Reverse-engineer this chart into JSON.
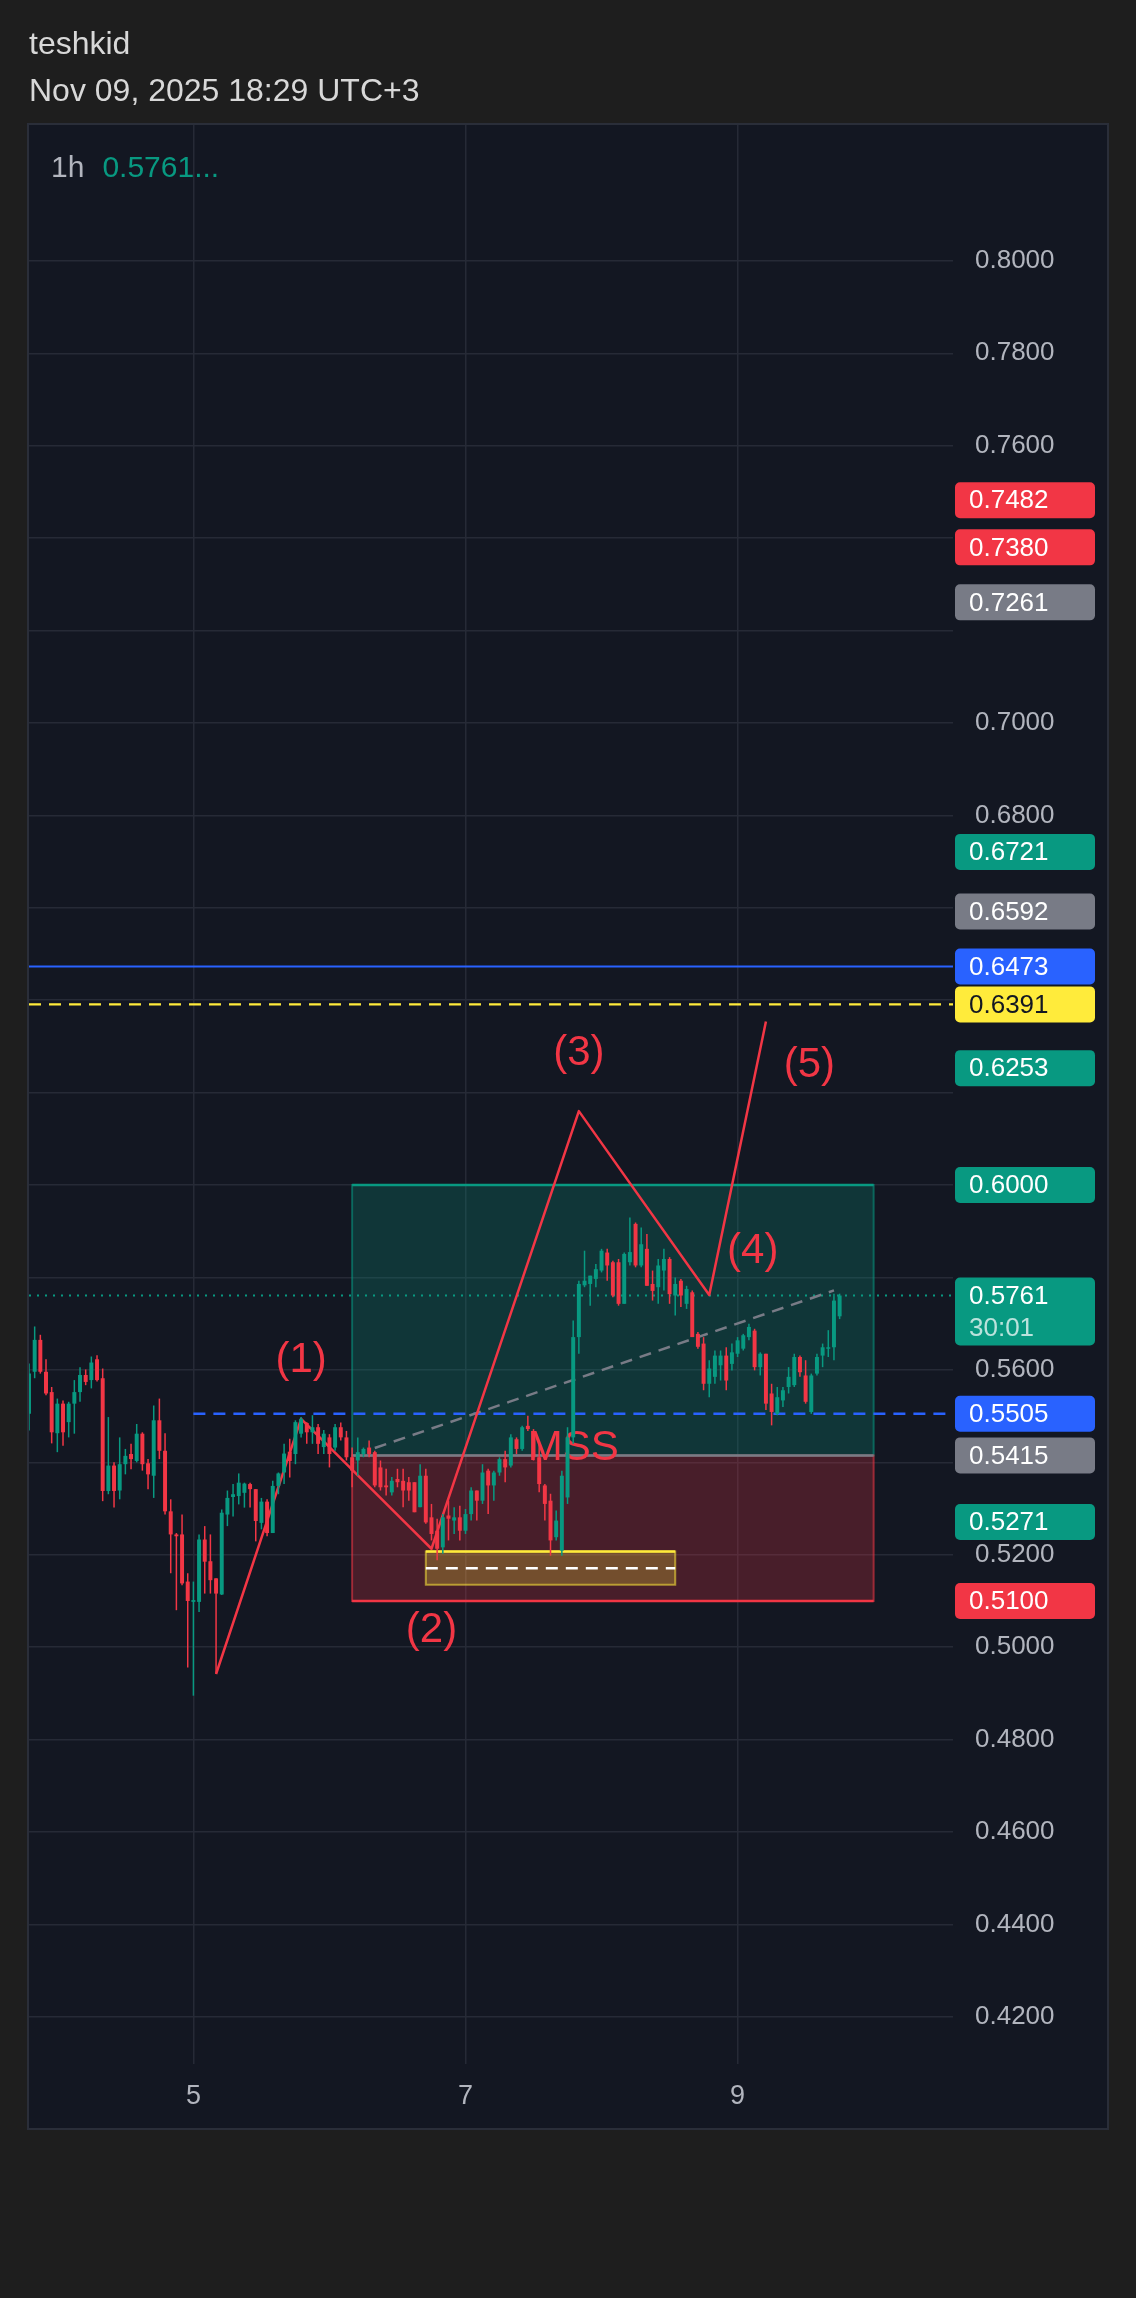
{
  "chart_data": {
    "type": "candlestick",
    "title": "1h",
    "subtitle": "0.5761...",
    "annotations": [
      "teshkid",
      "Nov 09, 2025 18:29 UTC+3",
      {
        "text": "(1)",
        "x": "2025-11-05T19:00",
        "y": 0.5494
      },
      {
        "text": "(2)",
        "x": "2025-11-06T18:00",
        "y": 0.5213
      },
      {
        "text": "(3)",
        "x": "2025-11-07T20:00",
        "y": 0.616
      },
      {
        "text": "(4)",
        "x": "2025-11-08T19:00",
        "y": 0.5762
      },
      {
        "text": "(5)",
        "x": "2025-11-09T05:00",
        "y": 0.6354
      },
      {
        "text": "MSS",
        "x": "2025-11-07T19:00",
        "y": 0.543
      }
    ],
    "x": [
      "2025-11-03T19:00",
      "2025-11-03T20:00",
      "2025-11-03T21:00",
      "2025-11-03T22:00",
      "2025-11-03T23:00",
      "2025-11-04T00:00",
      "2025-11-04T01:00",
      "2025-11-04T02:00",
      "2025-11-04T03:00",
      "2025-11-04T04:00",
      "2025-11-04T05:00",
      "2025-11-04T06:00",
      "2025-11-04T07:00",
      "2025-11-04T08:00",
      "2025-11-04T09:00",
      "2025-11-04T10:00",
      "2025-11-04T11:00",
      "2025-11-04T12:00",
      "2025-11-04T13:00",
      "2025-11-04T14:00",
      "2025-11-04T15:00",
      "2025-11-04T16:00",
      "2025-11-04T17:00",
      "2025-11-04T18:00",
      "2025-11-04T19:00",
      "2025-11-04T20:00",
      "2025-11-04T21:00",
      "2025-11-04T22:00",
      "2025-11-04T23:00",
      "2025-11-05T00:00",
      "2025-11-05T01:00",
      "2025-11-05T02:00",
      "2025-11-05T03:00",
      "2025-11-05T04:00",
      "2025-11-05T05:00",
      "2025-11-05T06:00",
      "2025-11-05T07:00",
      "2025-11-05T08:00",
      "2025-11-05T09:00",
      "2025-11-05T10:00",
      "2025-11-05T11:00",
      "2025-11-05T12:00",
      "2025-11-05T13:00",
      "2025-11-05T14:00",
      "2025-11-05T15:00",
      "2025-11-05T16:00",
      "2025-11-05T17:00",
      "2025-11-05T18:00",
      "2025-11-05T19:00",
      "2025-11-05T20:00",
      "2025-11-05T21:00",
      "2025-11-05T22:00",
      "2025-11-05T23:00",
      "2025-11-06T00:00",
      "2025-11-06T01:00",
      "2025-11-06T02:00",
      "2025-11-06T03:00",
      "2025-11-06T04:00",
      "2025-11-06T05:00",
      "2025-11-06T06:00",
      "2025-11-06T07:00",
      "2025-11-06T08:00",
      "2025-11-06T09:00",
      "2025-11-06T10:00",
      "2025-11-06T11:00",
      "2025-11-06T12:00",
      "2025-11-06T13:00",
      "2025-11-06T14:00",
      "2025-11-06T15:00",
      "2025-11-06T16:00",
      "2025-11-06T17:00",
      "2025-11-06T18:00",
      "2025-11-06T19:00",
      "2025-11-06T20:00",
      "2025-11-06T21:00",
      "2025-11-06T22:00",
      "2025-11-06T23:00",
      "2025-11-07T00:00",
      "2025-11-07T01:00",
      "2025-11-07T02:00",
      "2025-11-07T03:00",
      "2025-11-07T04:00",
      "2025-11-07T05:00",
      "2025-11-07T06:00",
      "2025-11-07T07:00",
      "2025-11-07T08:00",
      "2025-11-07T09:00",
      "2025-11-07T10:00",
      "2025-11-07T11:00",
      "2025-11-07T12:00",
      "2025-11-07T13:00",
      "2025-11-07T14:00",
      "2025-11-07T15:00",
      "2025-11-07T16:00",
      "2025-11-07T17:00",
      "2025-11-07T18:00",
      "2025-11-07T19:00",
      "2025-11-07T20:00",
      "2025-11-07T21:00",
      "2025-11-07T22:00",
      "2025-11-07T23:00",
      "2025-11-08T00:00",
      "2025-11-08T01:00",
      "2025-11-08T02:00",
      "2025-11-08T03:00",
      "2025-11-08T04:00",
      "2025-11-08T05:00",
      "2025-11-08T06:00",
      "2025-11-08T07:00",
      "2025-11-08T08:00",
      "2025-11-08T09:00",
      "2025-11-08T10:00",
      "2025-11-08T11:00",
      "2025-11-08T12:00",
      "2025-11-08T13:00",
      "2025-11-08T14:00",
      "2025-11-08T15:00",
      "2025-11-08T16:00",
      "2025-11-08T17:00",
      "2025-11-08T18:00",
      "2025-11-08T19:00",
      "2025-11-08T20:00",
      "2025-11-08T21:00",
      "2025-11-08T22:00",
      "2025-11-08T23:00",
      "2025-11-09T00:00",
      "2025-11-09T01:00",
      "2025-11-09T02:00",
      "2025-11-09T03:00",
      "2025-11-09T04:00",
      "2025-11-09T05:00",
      "2025-11-09T06:00",
      "2025-11-09T07:00",
      "2025-11-09T08:00",
      "2025-11-09T09:00",
      "2025-11-09T10:00",
      "2025-11-09T11:00",
      "2025-11-09T12:00",
      "2025-11-09T13:00",
      "2025-11-09T14:00",
      "2025-11-09T15:00",
      "2025-11-09T16:00",
      "2025-11-09T17:00",
      "2025-11-09T18:00"
    ],
    "ohlc": [
      [
        0.5505,
        0.5614,
        0.5469,
        0.5592
      ],
      [
        0.5596,
        0.5694,
        0.5582,
        0.5665
      ],
      [
        0.5665,
        0.5676,
        0.5592,
        0.5596
      ],
      [
        0.5596,
        0.5623,
        0.5545,
        0.5549
      ],
      [
        0.5552,
        0.5563,
        0.5441,
        0.5465
      ],
      [
        0.5463,
        0.5538,
        0.5422,
        0.5527
      ],
      [
        0.5527,
        0.5534,
        0.5436,
        0.5465
      ],
      [
        0.5487,
        0.5531,
        0.5454,
        0.5527
      ],
      [
        0.5527,
        0.5578,
        0.5462,
        0.5552
      ],
      [
        0.5552,
        0.5606,
        0.5531,
        0.5589
      ],
      [
        0.5589,
        0.5601,
        0.5567,
        0.5574
      ],
      [
        0.5578,
        0.5629,
        0.556,
        0.5616
      ],
      [
        0.5623,
        0.5632,
        0.5575,
        0.5578
      ],
      [
        0.5582,
        0.5603,
        0.5316,
        0.5338
      ],
      [
        0.5338,
        0.5498,
        0.5331,
        0.5393
      ],
      [
        0.5393,
        0.54,
        0.5302,
        0.5338
      ],
      [
        0.5339,
        0.5454,
        0.532,
        0.5396
      ],
      [
        0.5396,
        0.5429,
        0.5374,
        0.5414
      ],
      [
        0.5418,
        0.544,
        0.5385,
        0.5407
      ],
      [
        0.5403,
        0.5483,
        0.54,
        0.5462
      ],
      [
        0.5462,
        0.5465,
        0.5382,
        0.5396
      ],
      [
        0.5398,
        0.5407,
        0.5342,
        0.5374
      ],
      [
        0.5371,
        0.5523,
        0.5323,
        0.5491
      ],
      [
        0.5491,
        0.5538,
        0.5407,
        0.5425
      ],
      [
        0.5425,
        0.5463,
        0.5287,
        0.5294
      ],
      [
        0.5294,
        0.532,
        0.516,
        0.5244
      ],
      [
        0.5244,
        0.5247,
        0.508,
        0.524
      ],
      [
        0.5244,
        0.5287,
        0.5134,
        0.5138
      ],
      [
        0.5142,
        0.516,
        0.4956,
        0.51
      ],
      [
        0.5098,
        0.5142,
        0.4895,
        0.5102
      ],
      [
        0.5098,
        0.5244,
        0.5076,
        0.5233
      ],
      [
        0.5233,
        0.5262,
        0.5116,
        0.5185
      ],
      [
        0.5186,
        0.5244,
        0.5116,
        0.5145
      ],
      [
        0.5149,
        0.5149,
        0.4942,
        0.5116
      ],
      [
        0.5114,
        0.5298,
        0.5113,
        0.5291
      ],
      [
        0.5287,
        0.5339,
        0.5262,
        0.5323
      ],
      [
        0.5325,
        0.5353,
        0.5283,
        0.5331
      ],
      [
        0.5327,
        0.5376,
        0.5309,
        0.5356
      ],
      [
        0.5334,
        0.5356,
        0.5302,
        0.5354
      ],
      [
        0.5353,
        0.5356,
        0.5302,
        0.5342
      ],
      [
        0.5342,
        0.5342,
        0.5229,
        0.5273
      ],
      [
        0.5269,
        0.5323,
        0.5255,
        0.5315
      ],
      [
        0.5315,
        0.532,
        0.524,
        0.5247
      ],
      [
        0.5247,
        0.536,
        0.5247,
        0.5349
      ],
      [
        0.5349,
        0.5378,
        0.5331,
        0.5376
      ],
      [
        0.5378,
        0.544,
        0.5353,
        0.5419
      ],
      [
        0.5423,
        0.5451,
        0.5367,
        0.5403
      ],
      [
        0.5418,
        0.5491,
        0.5396,
        0.5487
      ],
      [
        0.5462,
        0.5498,
        0.5454,
        0.5494
      ],
      [
        0.5485,
        0.5487,
        0.544,
        0.5465
      ],
      [
        0.5465,
        0.5502,
        0.544,
        0.5476
      ],
      [
        0.5476,
        0.5483,
        0.5418,
        0.544
      ],
      [
        0.5433,
        0.547,
        0.5418,
        0.5462
      ],
      [
        0.5454,
        0.5461,
        0.5389,
        0.5418
      ],
      [
        0.5432,
        0.5483,
        0.5425,
        0.5476
      ],
      [
        0.5476,
        0.5486,
        0.5447,
        0.5454
      ],
      [
        0.5454,
        0.5468,
        0.5404,
        0.5411
      ],
      [
        0.5411,
        0.5432,
        0.5346,
        0.5382
      ],
      [
        0.5404,
        0.5454,
        0.5371,
        0.5422
      ],
      [
        0.5418,
        0.5432,
        0.5411,
        0.5429
      ],
      [
        0.5432,
        0.5447,
        0.5411,
        0.5418
      ],
      [
        0.5422,
        0.5425,
        0.5346,
        0.535
      ],
      [
        0.5389,
        0.5404,
        0.5339,
        0.5346
      ],
      [
        0.535,
        0.5386,
        0.5328,
        0.5346
      ],
      [
        0.5335,
        0.5368,
        0.5328,
        0.536
      ],
      [
        0.5364,
        0.5386,
        0.5346,
        0.5357
      ],
      [
        0.536,
        0.5386,
        0.5303,
        0.5339
      ],
      [
        0.5357,
        0.5368,
        0.5317,
        0.5339
      ],
      [
        0.5357,
        0.5357,
        0.5292,
        0.5292
      ],
      [
        0.5303,
        0.5396,
        0.5303,
        0.5371
      ],
      [
        0.5371,
        0.5386,
        0.5267,
        0.527
      ],
      [
        0.5281,
        0.531,
        0.5231,
        0.5245
      ],
      [
        0.5252,
        0.5278,
        0.5188,
        0.5213
      ],
      [
        0.5216,
        0.5288,
        0.5202,
        0.5281
      ],
      [
        0.5285,
        0.5317,
        0.5231,
        0.5278
      ],
      [
        0.5274,
        0.5303,
        0.5245,
        0.5281
      ],
      [
        0.5281,
        0.5306,
        0.5231,
        0.5252
      ],
      [
        0.5252,
        0.5299,
        0.5245,
        0.5288
      ],
      [
        0.5288,
        0.5346,
        0.5274,
        0.5339
      ],
      [
        0.5339,
        0.5339,
        0.5274,
        0.5317
      ],
      [
        0.5317,
        0.5396,
        0.531,
        0.5378
      ],
      [
        0.5382,
        0.5386,
        0.5288,
        0.535
      ],
      [
        0.535,
        0.5382,
        0.5317,
        0.5378
      ],
      [
        0.5378,
        0.5411,
        0.5371,
        0.5407
      ],
      [
        0.5407,
        0.5425,
        0.5357,
        0.5389
      ],
      [
        0.5393,
        0.5461,
        0.5389,
        0.5454
      ],
      [
        0.545,
        0.5454,
        0.5418,
        0.5429
      ],
      [
        0.5429,
        0.5479,
        0.5425,
        0.5476
      ],
      [
        0.5479,
        0.5501,
        0.5468,
        0.5472
      ],
      [
        0.5468,
        0.5472,
        0.5404,
        0.5411
      ],
      [
        0.5411,
        0.544,
        0.5335,
        0.5353
      ],
      [
        0.535,
        0.5353,
        0.5274,
        0.531
      ],
      [
        0.5317,
        0.5332,
        0.5198,
        0.5231
      ],
      [
        0.5238,
        0.5296,
        0.5231,
        0.5274
      ],
      [
        0.5209,
        0.5382,
        0.5198,
        0.5371
      ],
      [
        0.5324,
        0.5476,
        0.531,
        0.5454
      ],
      [
        0.5454,
        0.5707,
        0.544,
        0.5671
      ],
      [
        0.5671,
        0.5793,
        0.5635,
        0.5786
      ],
      [
        0.5783,
        0.5858,
        0.5779,
        0.5793
      ],
      [
        0.5786,
        0.5804,
        0.5739,
        0.5804
      ],
      [
        0.5797,
        0.5829,
        0.5779,
        0.5818
      ],
      [
        0.5815,
        0.5862,
        0.5811,
        0.5858
      ],
      [
        0.5854,
        0.5862,
        0.5793,
        0.5826
      ],
      [
        0.5833,
        0.5836,
        0.5757,
        0.5761
      ],
      [
        0.5833,
        0.584,
        0.5739,
        0.5743
      ],
      [
        0.5743,
        0.5854,
        0.5743,
        0.5851
      ],
      [
        0.5833,
        0.593,
        0.5826,
        0.5855
      ],
      [
        0.5916,
        0.5919,
        0.5822,
        0.5826
      ],
      [
        0.5826,
        0.5908,
        0.5822,
        0.5872
      ],
      [
        0.5862,
        0.5894,
        0.5782,
        0.5782
      ],
      [
        0.5786,
        0.5815,
        0.575,
        0.5771
      ],
      [
        0.5779,
        0.584,
        0.5743,
        0.5826
      ],
      [
        0.5815,
        0.5862,
        0.5772,
        0.584
      ],
      [
        0.584,
        0.5844,
        0.5743,
        0.5764
      ],
      [
        0.5761,
        0.58,
        0.5718,
        0.5786
      ],
      [
        0.5793,
        0.5797,
        0.5736,
        0.5761
      ],
      [
        0.5743,
        0.5782,
        0.5732,
        0.5775
      ],
      [
        0.5768,
        0.5772,
        0.5671,
        0.5671
      ],
      [
        0.5678,
        0.5682,
        0.5646,
        0.565
      ],
      [
        0.5657,
        0.5671,
        0.5556,
        0.557
      ],
      [
        0.557,
        0.5621,
        0.5541,
        0.5603
      ],
      [
        0.5585,
        0.5642,
        0.557,
        0.5631
      ],
      [
        0.561,
        0.5642,
        0.5577,
        0.5631
      ],
      [
        0.5631,
        0.5649,
        0.5556,
        0.5577
      ],
      [
        0.5613,
        0.5657,
        0.5599,
        0.5638
      ],
      [
        0.5635,
        0.5671,
        0.5628,
        0.5664
      ],
      [
        0.5646,
        0.5678,
        0.5642,
        0.5675
      ],
      [
        0.5671,
        0.57,
        0.5664,
        0.5693
      ],
      [
        0.5685,
        0.5689,
        0.5599,
        0.5606
      ],
      [
        0.5606,
        0.5638,
        0.5588,
        0.5635
      ],
      [
        0.5635,
        0.5635,
        0.5513,
        0.5527
      ],
      [
        0.5549,
        0.557,
        0.548,
        0.5509
      ],
      [
        0.5505,
        0.5563,
        0.5502,
        0.5541
      ],
      [
        0.5534,
        0.5563,
        0.552,
        0.5556
      ],
      [
        0.5563,
        0.5606,
        0.5549,
        0.5585
      ],
      [
        0.5567,
        0.5635,
        0.5563,
        0.5628
      ],
      [
        0.5628,
        0.5631,
        0.5585,
        0.5595
      ],
      [
        0.5588,
        0.5621,
        0.5527,
        0.5531
      ],
      [
        0.5509,
        0.5592,
        0.5505,
        0.5588
      ],
      [
        0.5592,
        0.5635,
        0.5588,
        0.5628
      ],
      [
        0.5631,
        0.5657,
        0.5606,
        0.5649
      ],
      [
        0.5646,
        0.5686,
        0.5628,
        0.5649
      ],
      [
        0.5649,
        0.5765,
        0.5621,
        0.575
      ],
      [
        0.5716,
        0.5765,
        0.571,
        0.5761
      ]
    ],
    "series": [
      {
        "type": "line",
        "x": [
          "2025-11-06T04:00",
          "2025-11-10T00:00"
        ],
        "values": [
          0.6,
          0.6
        ],
        "lower": [
          0.5415,
          0.5415
        ],
        "upper": [
          0.6,
          0.6
        ],
        "color": "#089981",
        "line_style": "solid"
      },
      {
        "type": "line",
        "x": [
          "2025-11-06T04:00",
          "2025-11-10T00:00"
        ],
        "values": [
          0.51,
          0.51
        ],
        "lower": [
          0.51,
          0.51
        ],
        "upper": [
          0.5415,
          0.5415
        ],
        "color": "#f23645",
        "line_style": "solid"
      },
      {
        "type": "line",
        "x": [
          "2025-11-06T04:00",
          "2025-11-10T00:00"
        ],
        "values": [
          0.5415,
          0.5415
        ],
        "color": "#787b86",
        "line_style": "solid"
      },
      {
        "type": "line",
        "x": [
          "2025-11-06T17:00",
          "2025-11-08T13:00"
        ],
        "values": [
          0.5207,
          0.5207
        ],
        "lower": [
          0.5135,
          0.5135
        ],
        "upper": [
          0.5207,
          0.5207
        ],
        "color": "#ffeb3b",
        "line_style": "solid"
      },
      {
        "type": "line",
        "x": [
          "2025-11-06T17:00",
          "2025-11-08T13:00"
        ],
        "values": [
          0.5171,
          0.5171
        ],
        "color": "#ffffff",
        "line_style": "dashed"
      },
      {
        "type": "line",
        "x": [
          "2025-11-05T00:00",
          "2025-11-10T14:00"
        ],
        "values": [
          0.5505,
          0.5505
        ],
        "color": "#2962ff",
        "line_style": "dashed"
      },
      {
        "type": "line",
        "x": [
          "2025-11-06T08:00",
          "2025-11-09T17:00"
        ],
        "values": [
          0.5431,
          0.5772
        ],
        "color": "#787b86",
        "line_style": "dashed"
      },
      {
        "type": "line",
        "x": [
          "2025-11-05T04:00",
          "2025-11-05T19:00",
          "2025-11-06T18:00",
          "2025-11-07T20:00",
          "2025-11-08T19:00",
          "2025-11-09T05:00"
        ],
        "values": [
          0.4942,
          0.5494,
          0.5213,
          0.616,
          0.5762,
          0.6354
        ],
        "color": "#f23645",
        "line_style": "solid"
      }
    ],
    "ref_lines": [
      {
        "axis": "y",
        "value": 0.6473,
        "label": "0.6473",
        "color": "#2962ff",
        "line_style": "solid"
      },
      {
        "axis": "y",
        "value": 0.6391,
        "label": "0.6391",
        "color": "#ffeb3b",
        "line_style": "dashed"
      },
      {
        "axis": "y",
        "value": 0.5761,
        "label": "0.5761\n30:01",
        "color": "#089981",
        "line_style": "dotted"
      }
    ],
    "xlim": [
      "2025-11-03T19:00",
      "2025-11-10T14:00"
    ],
    "xticks": [
      {
        "value": "2025-11-05",
        "label": "5"
      },
      {
        "value": "2025-11-07",
        "label": "7"
      },
      {
        "value": "2025-11-09",
        "label": "9"
      }
    ],
    "ylim": [
      0.4098,
      0.8294
    ],
    "yticks": [
      {
        "value": 0.42,
        "label": "0.4200"
      },
      {
        "value": 0.44,
        "label": "0.4400"
      },
      {
        "value": 0.46,
        "label": "0.4600"
      },
      {
        "value": 0.48,
        "label": "0.4800"
      },
      {
        "value": 0.5,
        "label": "0.5000"
      },
      {
        "value": 0.52,
        "label": "0.5200"
      },
      {
        "value": 0.54,
        "label": null
      },
      {
        "value": 0.56,
        "label": "0.5600"
      },
      {
        "value": 0.58,
        "label": null
      },
      {
        "value": 0.6,
        "label": null
      },
      {
        "value": 0.62,
        "label": null
      },
      {
        "value": 0.64,
        "label": null
      },
      {
        "value": 0.66,
        "label": null
      },
      {
        "value": 0.68,
        "label": "0.6800"
      },
      {
        "value": 0.7,
        "label": "0.7000"
      },
      {
        "value": 0.72,
        "label": null
      },
      {
        "value": 0.74,
        "label": null
      },
      {
        "value": 0.76,
        "label": "0.7600"
      },
      {
        "value": 0.78,
        "label": "0.7800"
      },
      {
        "value": 0.8,
        "label": "0.8000"
      }
    ],
    "y2lim": [
      0.4098,
      0.8294
    ],
    "y2ticks": [
      {
        "value": 0.7482,
        "label": "0.7482"
      },
      {
        "value": 0.738,
        "label": "0.7380"
      },
      {
        "value": 0.7261,
        "label": "0.7261"
      },
      {
        "value": 0.6721,
        "label": "0.6721"
      },
      {
        "value": 0.6592,
        "label": "0.6592"
      },
      {
        "value": 0.6253,
        "label": "0.6253"
      },
      {
        "value": 0.6,
        "label": "0.6000"
      },
      {
        "value": 0.5505,
        "label": "0.5505"
      },
      {
        "value": 0.5415,
        "label": "0.5415"
      },
      {
        "value": 0.5271,
        "label": "0.5271"
      },
      {
        "value": 0.51,
        "label": "0.5100"
      }
    ],
    "grid": true
  }
}
